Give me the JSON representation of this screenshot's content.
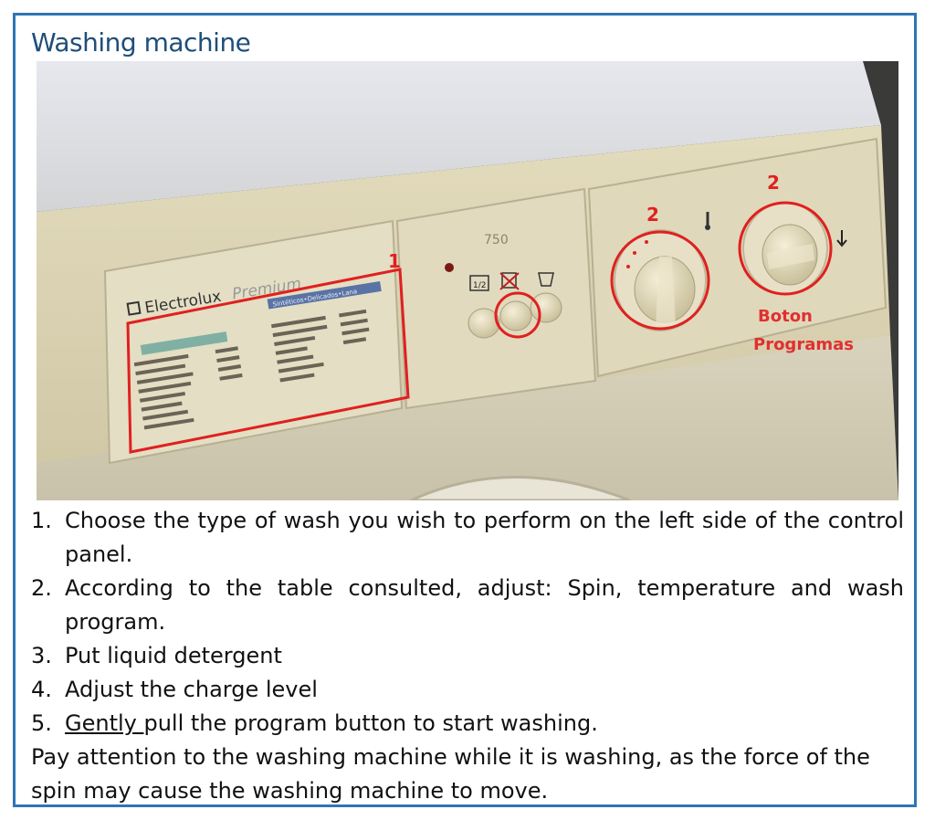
{
  "title": "Washing machine",
  "photo": {
    "brand": "Electrolux",
    "model": "Premium",
    "panel_header": "Sintéticos•Delicados•Lana",
    "spin_badge": "750",
    "half_load_label": "1/2",
    "annotations": {
      "marker_1": "1",
      "marker_2a": "2",
      "marker_2b": "2",
      "program_button_label_line1": "Boton",
      "program_button_label_line2": "Programas"
    },
    "colors": {
      "annotation_red": "#e02020",
      "panel": "#ddd5b4",
      "top": "#dcdfe6"
    }
  },
  "steps": [
    {
      "num": "1.",
      "text": "Choose the type of wash you wish to perform on the left side of the control panel."
    },
    {
      "num": "2.",
      "text": "According to the table consulted, adjust: Spin, temperature and wash program."
    },
    {
      "num": "3.",
      "text": "Put liquid detergent"
    },
    {
      "num": "4.",
      "text": "Adjust the charge level"
    },
    {
      "num": "5.",
      "emphasis": "Gently ",
      "text": "pull the program button to start washing."
    }
  ],
  "note": "Pay attention to the washing machine while it is washing, as the force of the spin may cause the washing machine to move."
}
